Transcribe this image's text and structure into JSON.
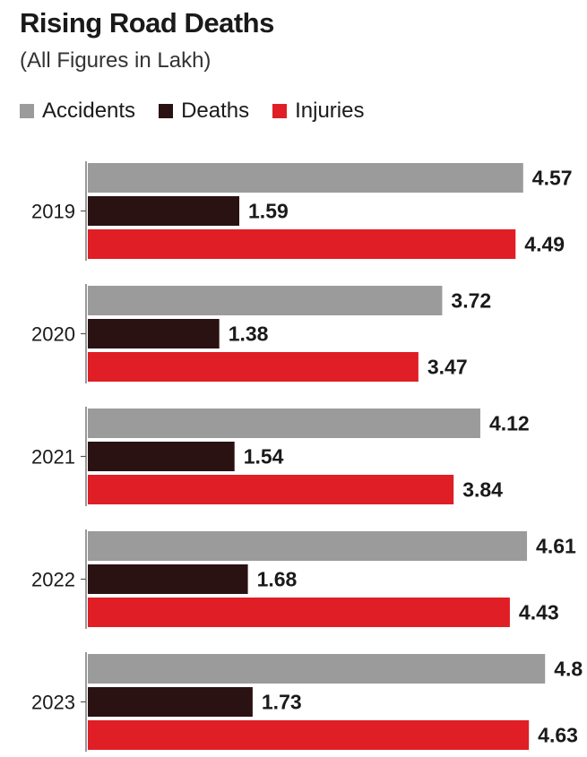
{
  "header": {
    "title": "Rising Road Deaths",
    "subtitle": "(All Figures in Lakh)"
  },
  "colors": {
    "accidents": "#9b9b9b",
    "deaths": "#2a1212",
    "injuries": "#e01e25",
    "axis": "#555555",
    "label": "#1a1a1a"
  },
  "chart_data": {
    "type": "bar",
    "orientation": "horizontal",
    "categories": [
      "2019",
      "2020",
      "2021",
      "2022",
      "2023"
    ],
    "series": [
      {
        "name": "Accidents",
        "values": [
          4.57,
          3.72,
          4.12,
          4.61,
          4.8
        ],
        "labels": [
          "4.57",
          "3.72",
          "4.12",
          "4.61",
          "4.8"
        ]
      },
      {
        "name": "Deaths",
        "values": [
          1.59,
          1.38,
          1.54,
          1.68,
          1.73
        ],
        "labels": [
          "1.59",
          "1.38",
          "1.54",
          "1.68",
          "1.73"
        ]
      },
      {
        "name": "Injuries",
        "values": [
          4.49,
          3.47,
          3.84,
          4.43,
          4.63
        ],
        "labels": [
          "4.49",
          "3.47",
          "3.84",
          "4.43",
          "4.63"
        ]
      }
    ],
    "xlim": [
      0,
      5
    ],
    "grid": false,
    "legend_position": "top-left",
    "title": "Rising Road Deaths",
    "subtitle": "(All Figures in Lakh)"
  }
}
